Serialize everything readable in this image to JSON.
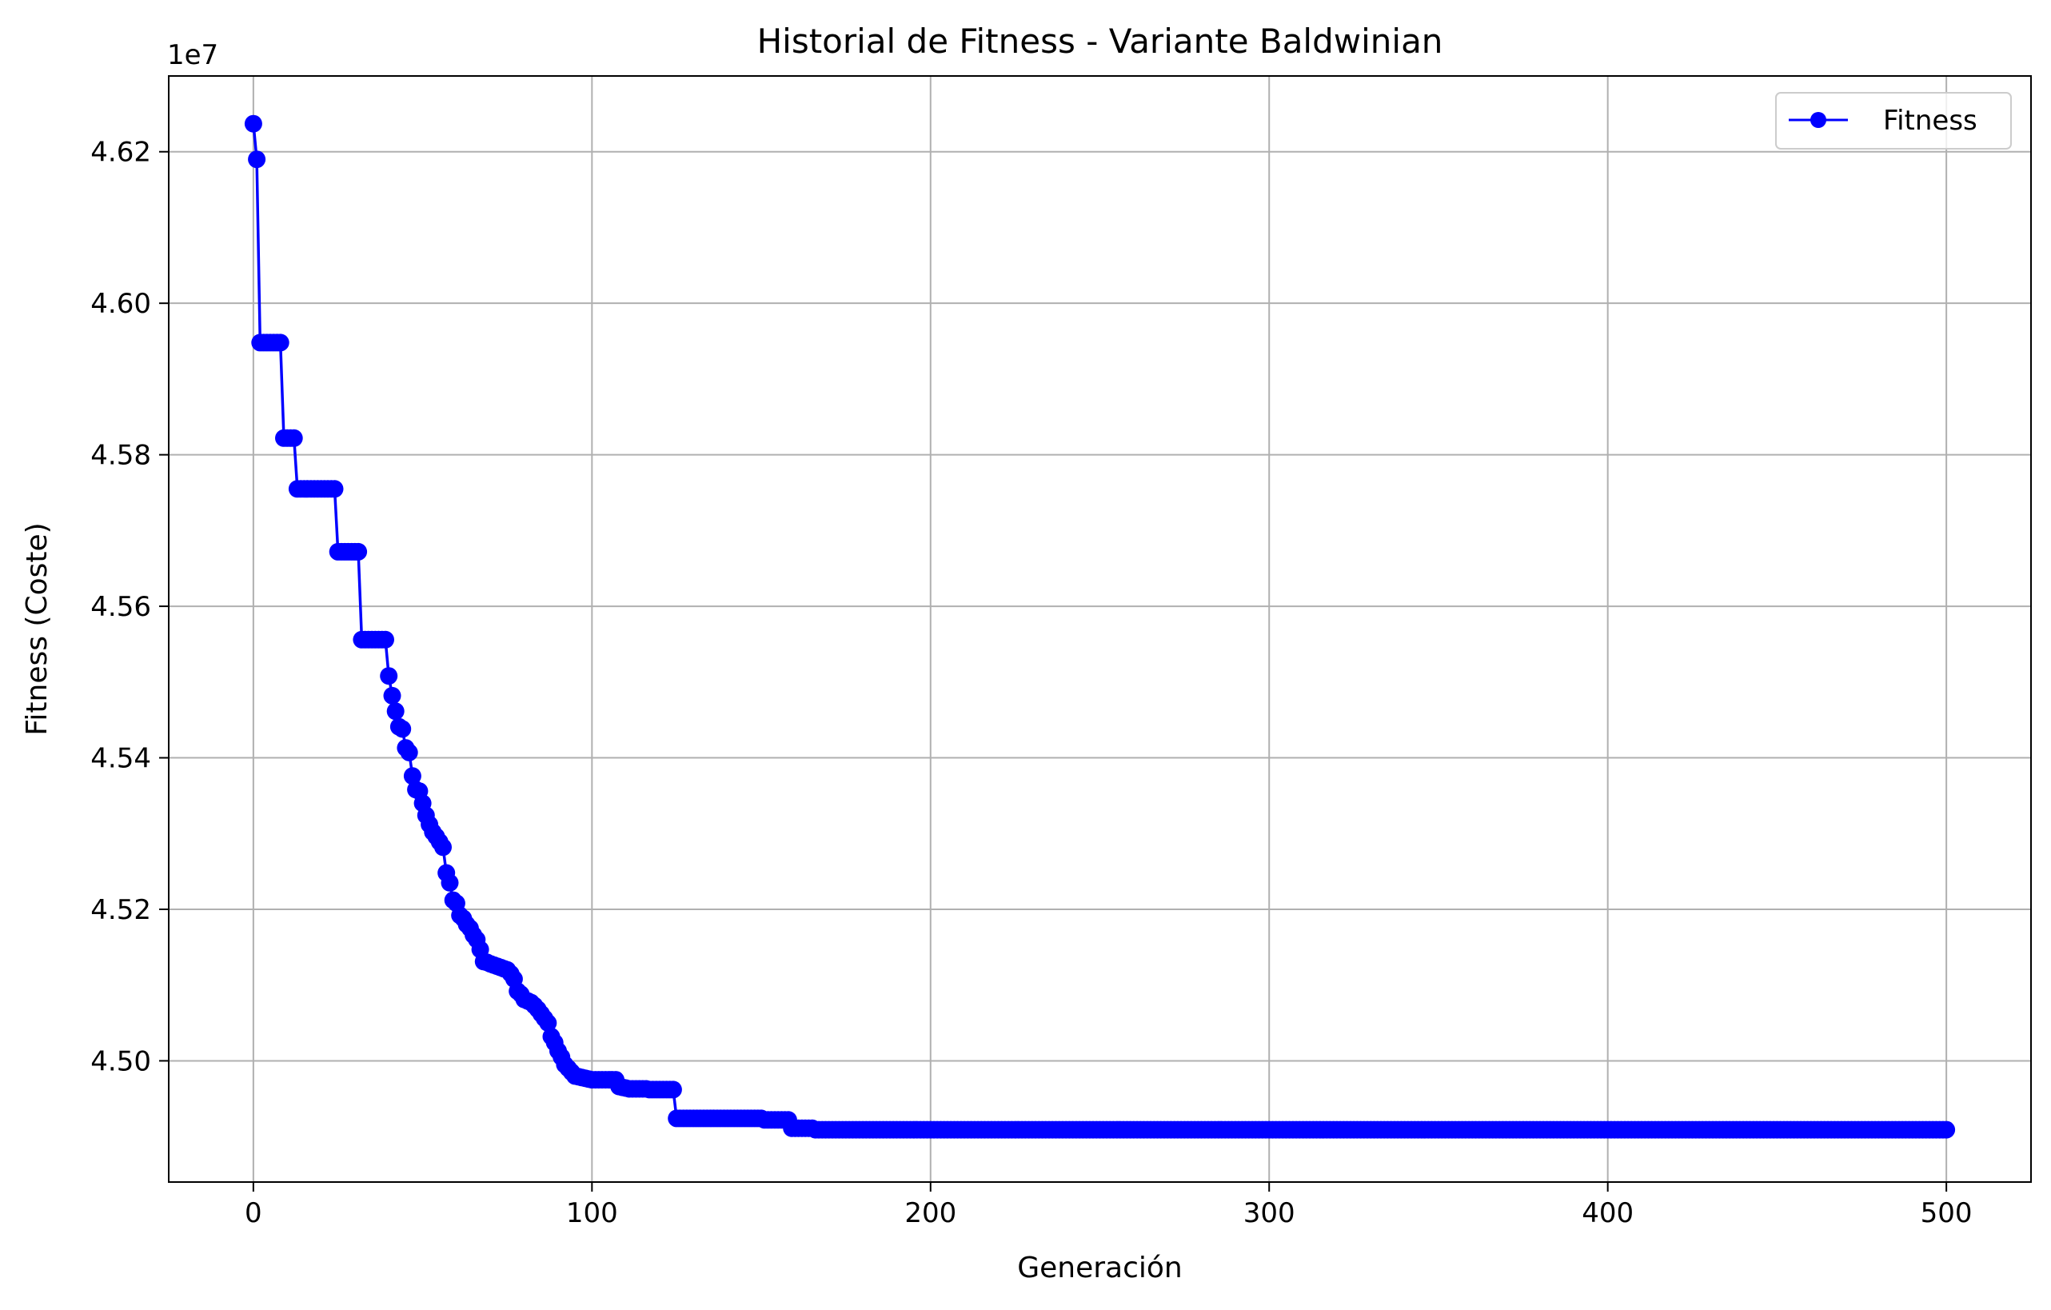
{
  "chart_data": {
    "type": "line",
    "title": "Historial de Fitness - Variante Baldwinian",
    "xlabel": "Generación",
    "ylabel": "Fitness (Coste)",
    "y_offset_label": "1e7",
    "xlim": [
      -25,
      525
    ],
    "ylim": [
      44840000,
      46300000
    ],
    "x_ticks": [
      0,
      100,
      200,
      300,
      400,
      500
    ],
    "x_tick_labels": [
      "0",
      "100",
      "200",
      "300",
      "400",
      "500"
    ],
    "y_ticks": [
      45000000,
      45200000,
      45400000,
      45600000,
      45800000,
      46000000,
      46200000
    ],
    "y_tick_labels": [
      "4.50",
      "4.52",
      "4.54",
      "4.56",
      "4.58",
      "4.60",
      "4.62"
    ],
    "grid": true,
    "legend_position": "top-right",
    "series": [
      {
        "name": "Fitness",
        "color": "#0000ff",
        "marker": "circle",
        "x": [
          0,
          1,
          2,
          8,
          9,
          12,
          13,
          24,
          25,
          31,
          32,
          39,
          40,
          41,
          43,
          44,
          45,
          46,
          47,
          48,
          49,
          51,
          52,
          53,
          54,
          56,
          57,
          58,
          59,
          60,
          61,
          62,
          63,
          64,
          65,
          66,
          67,
          68,
          69,
          70,
          75,
          76,
          77,
          78,
          79,
          80,
          82,
          83,
          84,
          86,
          87,
          88,
          89,
          90,
          91,
          92,
          93,
          94,
          95,
          100,
          107,
          108,
          109,
          110,
          111,
          116,
          117,
          124,
          125,
          126,
          150,
          151,
          158,
          159,
          165,
          166,
          500
        ],
        "values": [
          46237000,
          46190000,
          45948000,
          45948000,
          45822000,
          45822000,
          45755000,
          45755000,
          45672000,
          45672000,
          45556000,
          45556000,
          45508000,
          45482000,
          45441000,
          45438000,
          45413000,
          45407000,
          45376000,
          45358000,
          45356000,
          45324000,
          45312000,
          45302000,
          45296000,
          45282000,
          45248000,
          45235000,
          45212000,
          45208000,
          45192000,
          45188000,
          45180000,
          45175000,
          45166000,
          45160000,
          45147000,
          45131000,
          45130000,
          45128000,
          45120000,
          45115000,
          45108000,
          45092000,
          45088000,
          45081000,
          45077000,
          45073000,
          45068000,
          45056000,
          45050000,
          45032000,
          45024000,
          45013000,
          45005000,
          44995000,
          44990000,
          44985000,
          44980000,
          44975000,
          44975000,
          44966000,
          44965000,
          44964000,
          44963000,
          44963000,
          44962000,
          44962000,
          44924000,
          44924000,
          44924000,
          44922000,
          44922000,
          44911000,
          44911000,
          44909000,
          44909000
        ]
      }
    ]
  }
}
